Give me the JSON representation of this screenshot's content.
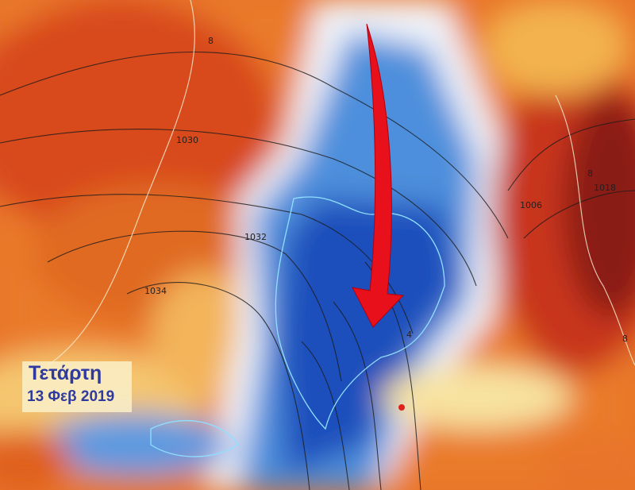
{
  "caption": {
    "day": "Τετάρτη",
    "date": "13 Φεβ 2019"
  },
  "isobar_labels": [
    "1030",
    "1032",
    "1034",
    "1006",
    "1018"
  ],
  "contour_labels": [
    "8",
    "4",
    "8",
    "8"
  ],
  "colors": {
    "warm": "#e8742a",
    "hot": "#a8261a",
    "cold": "#1f5bc4",
    "deep_cold": "#123a9a",
    "arrow": "#e8101a",
    "text": "#2f3aa0",
    "marker": "#e0201a"
  }
}
